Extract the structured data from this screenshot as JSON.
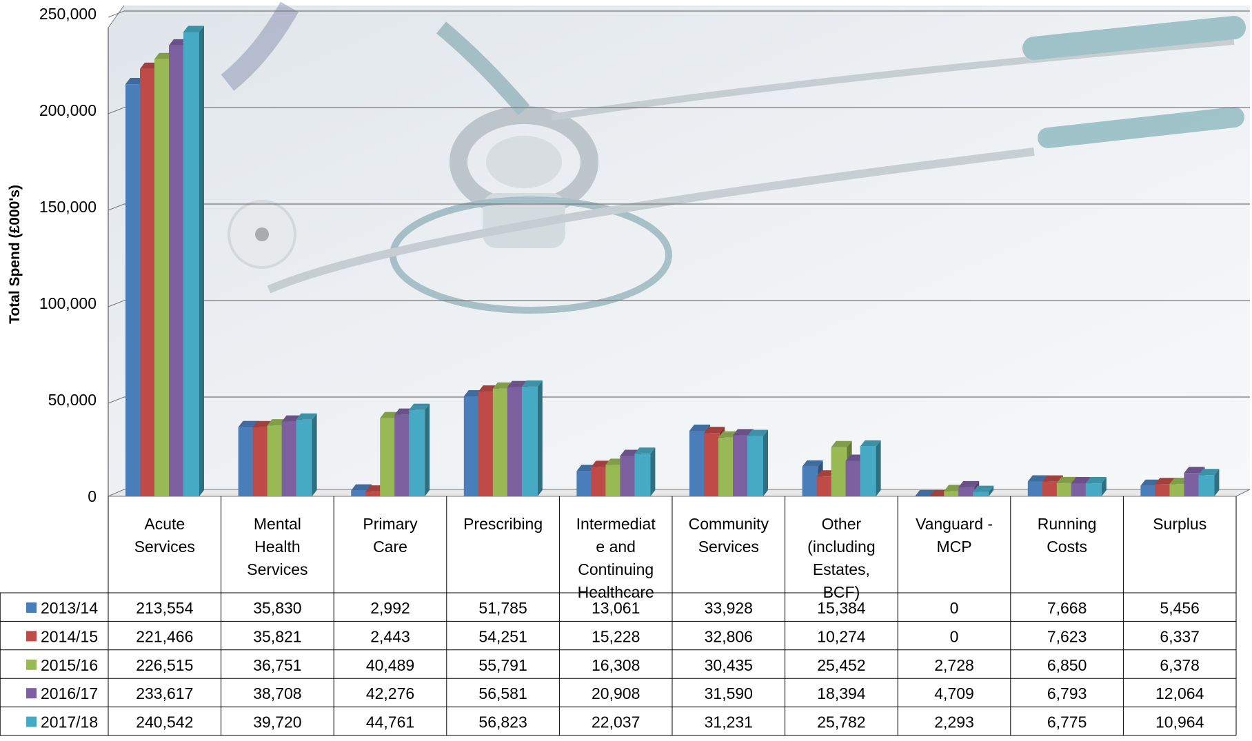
{
  "chart_data": {
    "type": "bar",
    "ylabel": "Total Spend (£000's)",
    "ylim": [
      0,
      250000
    ],
    "yticks": [
      "0",
      "50,000",
      "100,000",
      "150,000",
      "200,000",
      "250,000"
    ],
    "grid": true,
    "categories": [
      [
        "Acute",
        "Services"
      ],
      [
        "Mental",
        "Health",
        "Services"
      ],
      [
        "Primary",
        "Care"
      ],
      [
        "Prescribing"
      ],
      [
        "Intermediat",
        "e and",
        "Continuing",
        "Healthcare"
      ],
      [
        "Community",
        "Services"
      ],
      [
        "Other",
        "(including",
        "Estates,",
        "BCF)"
      ],
      [
        "Vanguard -",
        "MCP"
      ],
      [
        "Running",
        "Costs"
      ],
      [
        "Surplus"
      ]
    ],
    "series": [
      {
        "name": "2013/14",
        "color": "#4a7ebb",
        "values": [
          213554,
          35830,
          2992,
          51785,
          13061,
          33928,
          15384,
          0,
          7668,
          5456
        ],
        "labels": [
          "213,554",
          "35,830",
          "2,992",
          "51,785",
          "13,061",
          "33,928",
          "15,384",
          "0",
          "7,668",
          "5,456"
        ]
      },
      {
        "name": "2014/15",
        "color": "#be4b48",
        "values": [
          221466,
          35821,
          2443,
          54251,
          15228,
          32806,
          10274,
          0,
          7623,
          6337
        ],
        "labels": [
          "221,466",
          "35,821",
          "2,443",
          "54,251",
          "15,228",
          "32,806",
          "10,274",
          "0",
          "7,623",
          "6,337"
        ]
      },
      {
        "name": "2015/16",
        "color": "#98b954",
        "values": [
          226515,
          36751,
          40489,
          55791,
          16308,
          30435,
          25452,
          2728,
          6850,
          6378
        ],
        "labels": [
          "226,515",
          "36,751",
          "40,489",
          "55,791",
          "16,308",
          "30,435",
          "25,452",
          "2,728",
          "6,850",
          "6,378"
        ]
      },
      {
        "name": "2016/17",
        "color": "#7d60a0",
        "values": [
          233617,
          38708,
          42276,
          56581,
          20908,
          31590,
          18394,
          4709,
          6793,
          12064
        ],
        "labels": [
          "233,617",
          "38,708",
          "42,276",
          "56,581",
          "20,908",
          "31,590",
          "18,394",
          "4,709",
          "6,793",
          "12,064"
        ]
      },
      {
        "name": "2017/18",
        "color": "#46aac5",
        "values": [
          240542,
          39720,
          44761,
          56823,
          22037,
          31231,
          25782,
          2293,
          6775,
          10964
        ],
        "labels": [
          "240,542",
          "39,720",
          "44,761",
          "56,823",
          "22,037",
          "31,231",
          "25,782",
          "2,293",
          "6,775",
          "10,964"
        ]
      }
    ]
  }
}
